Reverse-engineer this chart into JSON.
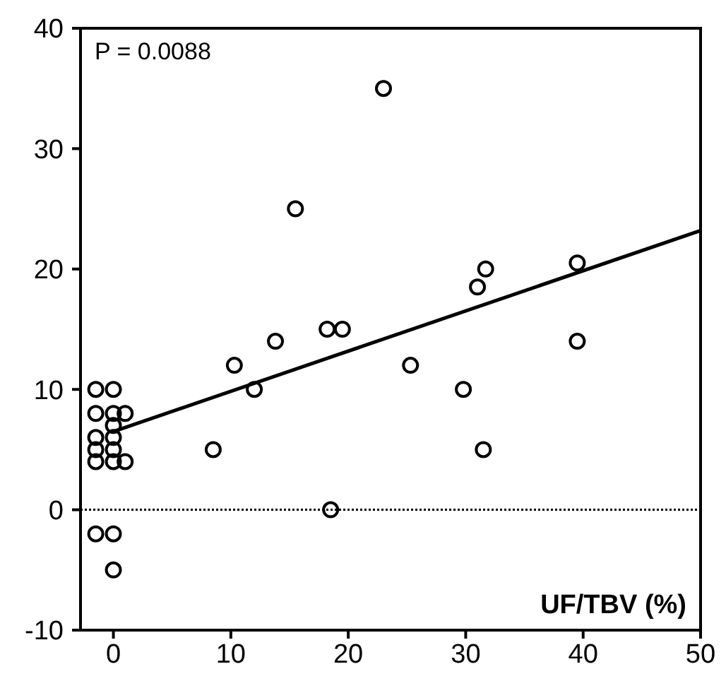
{
  "chart_data": {
    "type": "scatter",
    "xlabel": "UF/TBV (%)",
    "annotations": [
      "P = 0.0088"
    ],
    "xlim": [
      -2.8,
      50
    ],
    "ylim": [
      -10,
      40
    ],
    "xticks": [
      0,
      10,
      20,
      30,
      40,
      50
    ],
    "yticks": [
      -10,
      0,
      10,
      20,
      30,
      40
    ],
    "marker": "circle",
    "grid": false,
    "ref_lines": [
      {
        "axis": "y",
        "value": 0,
        "color": "#000000",
        "line_style": "dotted"
      }
    ],
    "series": [
      {
        "color": "#000000",
        "x": [
          -1.5,
          -1.5,
          -1.5,
          -1.5,
          -1.5,
          -1.5,
          0,
          0,
          0,
          0,
          0,
          0,
          0,
          0,
          1,
          1,
          8.5,
          10.3,
          12,
          13.8,
          15.5,
          18.2,
          19.5,
          23,
          18.5,
          25.3,
          29.8,
          31,
          31.7,
          31.5,
          39.5,
          39.5
        ],
        "values": [
          10,
          8,
          6,
          5,
          4,
          -2,
          10,
          8,
          7,
          6,
          5,
          4,
          -2,
          -5,
          8,
          4,
          5,
          12,
          10,
          14,
          25,
          15,
          15,
          35,
          0,
          12,
          10,
          18.5,
          20,
          5,
          20.5,
          14
        ]
      },
      {
        "type": "line",
        "color": "#000000",
        "marker": "none",
        "x": [
          0,
          50
        ],
        "values": [
          6.5,
          23.2
        ]
      }
    ]
  }
}
